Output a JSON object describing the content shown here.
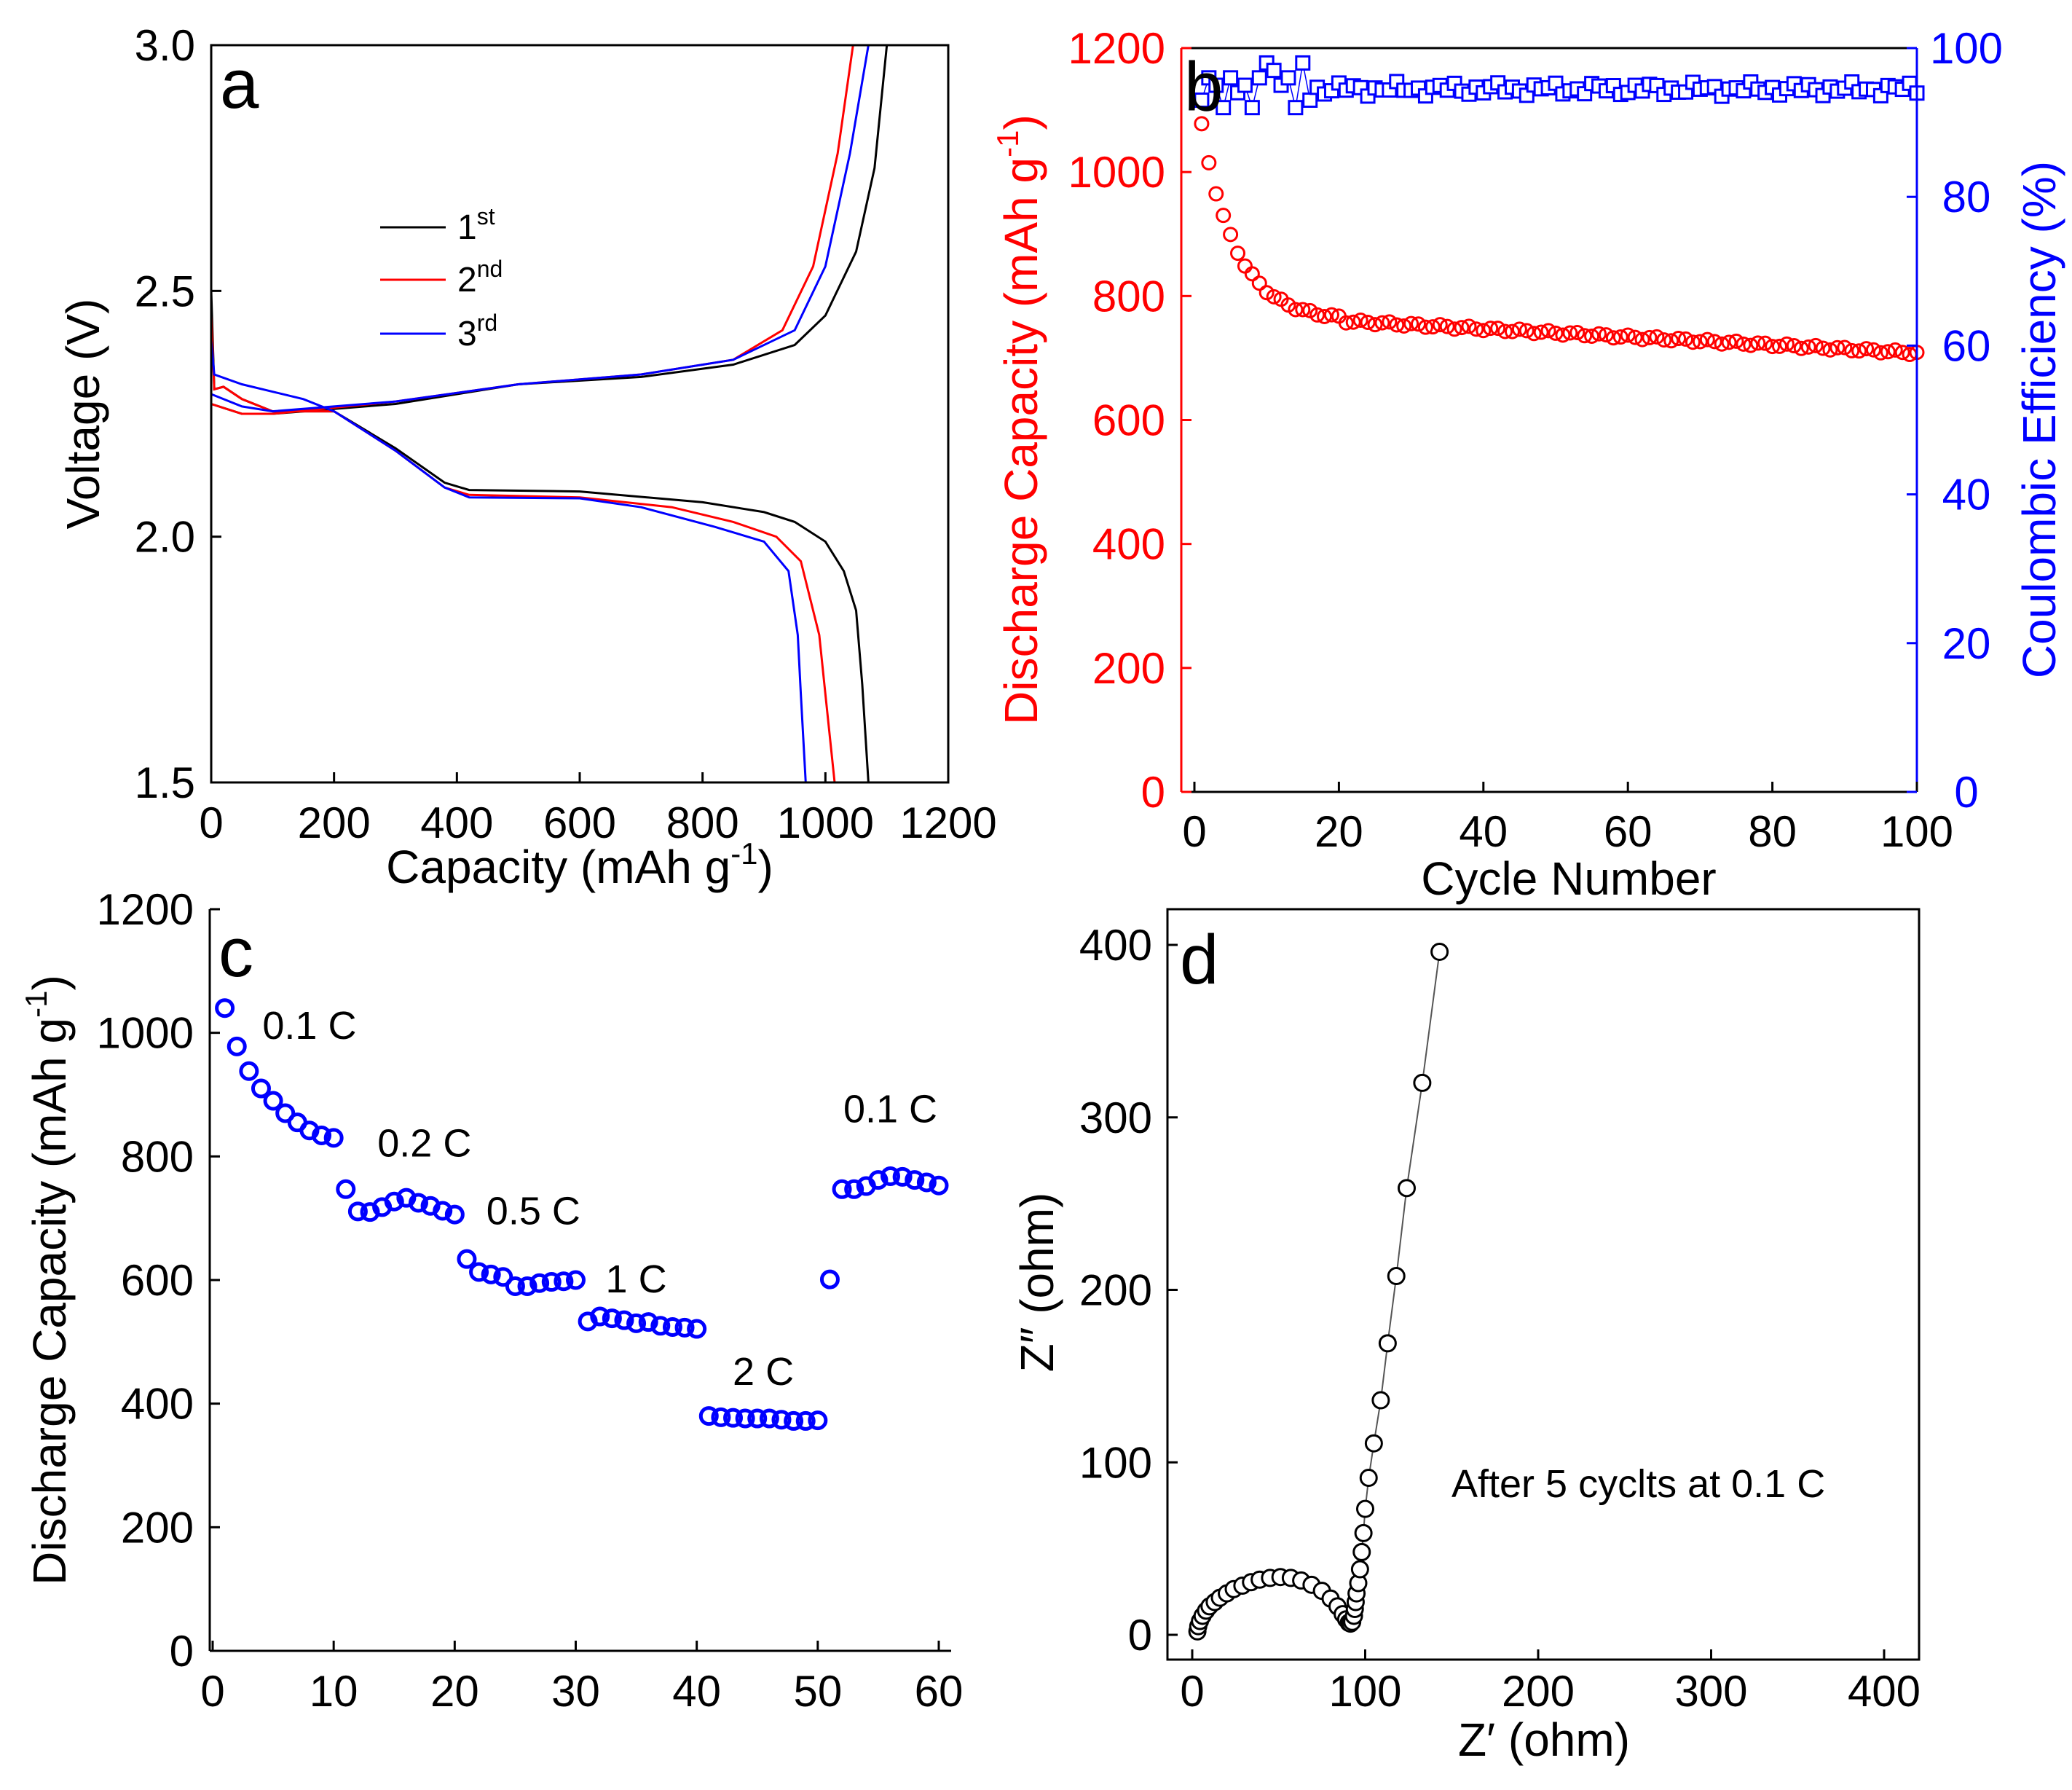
{
  "chart_data": [
    {
      "panel": "a",
      "type": "line",
      "xlabel": "Capacity (mAh g",
      "xlabel_sup": "-1",
      "xlabel_end": ")",
      "ylabel": "Voltage (V)",
      "xlim": [
        0,
        1200
      ],
      "ylim": [
        1.5,
        3.0
      ],
      "x_ticks": [
        0,
        200,
        400,
        600,
        800,
        1000,
        1200
      ],
      "y_ticks": [
        1.5,
        2.0,
        2.5,
        3.0
      ],
      "x_tick_labels": [
        "0",
        "200",
        "400",
        "600",
        "800",
        "1000",
        "1200"
      ],
      "y_tick_labels": [
        "1.5",
        "2.0",
        "2.5",
        "3.0"
      ],
      "legend": [
        {
          "text": "1",
          "sup": "st",
          "color": "#000000"
        },
        {
          "text": "2",
          "sup": "nd",
          "color": "#ff0000"
        },
        {
          "text": "3",
          "sup": "rd",
          "color": "#0000ff"
        }
      ],
      "series": [
        {
          "name": "1st",
          "color": "#000000",
          "discharge": [
            [
              0,
              2.5
            ],
            [
              5,
              2.3
            ],
            [
              20,
              2.305
            ],
            [
              50,
              2.28
            ],
            [
              100,
              2.255
            ],
            [
              200,
              2.255
            ],
            [
              300,
              2.18
            ],
            [
              380,
              2.11
            ],
            [
              420,
              2.095
            ],
            [
              600,
              2.092
            ],
            [
              800,
              2.07
            ],
            [
              900,
              2.05
            ],
            [
              950,
              2.03
            ],
            [
              1000,
              1.99
            ],
            [
              1030,
              1.93
            ],
            [
              1050,
              1.85
            ],
            [
              1060,
              1.7
            ],
            [
              1070,
              1.5
            ]
          ],
          "charge": [
            [
              0,
              2.27
            ],
            [
              50,
              2.25
            ],
            [
              100,
              2.25
            ],
            [
              300,
              2.27
            ],
            [
              500,
              2.31
            ],
            [
              700,
              2.325
            ],
            [
              850,
              2.35
            ],
            [
              950,
              2.39
            ],
            [
              1000,
              2.45
            ],
            [
              1050,
              2.58
            ],
            [
              1080,
              2.75
            ],
            [
              1100,
              3.0
            ]
          ]
        },
        {
          "name": "2nd",
          "color": "#ff0000",
          "discharge": [
            [
              0,
              2.45
            ],
            [
              5,
              2.3
            ],
            [
              20,
              2.305
            ],
            [
              50,
              2.28
            ],
            [
              100,
              2.255
            ],
            [
              200,
              2.255
            ],
            [
              300,
              2.175
            ],
            [
              380,
              2.1
            ],
            [
              420,
              2.085
            ],
            [
              600,
              2.08
            ],
            [
              750,
              2.06
            ],
            [
              850,
              2.03
            ],
            [
              920,
              2.0
            ],
            [
              960,
              1.95
            ],
            [
              990,
              1.8
            ],
            [
              1000,
              1.68
            ],
            [
              1015,
              1.5
            ]
          ],
          "charge": [
            [
              0,
              2.27
            ],
            [
              50,
              2.25
            ],
            [
              100,
              2.25
            ],
            [
              300,
              2.275
            ],
            [
              500,
              2.31
            ],
            [
              700,
              2.33
            ],
            [
              850,
              2.36
            ],
            [
              930,
              2.42
            ],
            [
              980,
              2.55
            ],
            [
              1020,
              2.78
            ],
            [
              1045,
              3.0
            ]
          ]
        },
        {
          "name": "3rd",
          "color": "#0000ff",
          "discharge": [
            [
              0,
              2.4
            ],
            [
              5,
              2.33
            ],
            [
              50,
              2.31
            ],
            [
              150,
              2.28
            ],
            [
              200,
              2.255
            ],
            [
              300,
              2.175
            ],
            [
              380,
              2.1
            ],
            [
              420,
              2.08
            ],
            [
              600,
              2.078
            ],
            [
              700,
              2.06
            ],
            [
              820,
              2.02
            ],
            [
              900,
              1.99
            ],
            [
              940,
              1.93
            ],
            [
              955,
              1.8
            ],
            [
              960,
              1.68
            ],
            [
              968,
              1.5
            ]
          ],
          "charge": [
            [
              0,
              2.29
            ],
            [
              50,
              2.265
            ],
            [
              100,
              2.255
            ],
            [
              300,
              2.275
            ],
            [
              500,
              2.31
            ],
            [
              700,
              2.33
            ],
            [
              850,
              2.36
            ],
            [
              950,
              2.42
            ],
            [
              1000,
              2.55
            ],
            [
              1040,
              2.78
            ],
            [
              1070,
              3.0
            ]
          ]
        }
      ]
    },
    {
      "panel": "b",
      "type": "scatter",
      "xlabel": "Cycle Number",
      "ylabel_left": "Discharge Capacity (mAh g",
      "ylabel_left_sup": "-1",
      "ylabel_left_end": ")",
      "ylabel_right": "Coulombic Efficiency (%)",
      "xlim": [
        0,
        100
      ],
      "ylim_left": [
        0,
        1200
      ],
      "ylim_right": [
        0,
        100
      ],
      "x_ticks": [
        0,
        20,
        40,
        60,
        80,
        100
      ],
      "y_ticks_left": [
        0,
        200,
        400,
        600,
        800,
        1000,
        1200
      ],
      "y_ticks_right": [
        0,
        20,
        40,
        60,
        80,
        100
      ],
      "x_tick_labels": [
        "0",
        "20",
        "40",
        "60",
        "80",
        "100"
      ],
      "y_tick_labels_left": [
        "0",
        "200",
        "400",
        "600",
        "800",
        "1000",
        "1200"
      ],
      "y_tick_labels_right": [
        "0",
        "20",
        "40",
        "60",
        "80",
        "100"
      ],
      "left_color": "#ff0000",
      "right_color": "#0000ff",
      "capacity_curve": {
        "start": 1075,
        "plateau_value": 760,
        "plateau_cycle": 20,
        "end_value": 708
      },
      "efficiency_curve": {
        "mean": 94.5,
        "first_cycles": [
          93,
          96,
          95,
          92,
          96,
          94,
          95,
          92,
          96,
          98,
          97,
          95,
          96,
          92,
          98,
          93
        ]
      }
    },
    {
      "panel": "c",
      "type": "scatter",
      "xlabel": "",
      "ylabel": "Discharge Capacity (mAh g",
      "ylabel_sup": "-1",
      "ylabel_end": ")",
      "xlim": [
        0,
        61
      ],
      "ylim": [
        0,
        1200
      ],
      "x_ticks": [
        0,
        10,
        20,
        30,
        40,
        50,
        60
      ],
      "y_ticks": [
        0,
        200,
        400,
        600,
        800,
        1000,
        1200
      ],
      "x_tick_labels": [
        "0",
        "10",
        "20",
        "30",
        "40",
        "50",
        "60"
      ],
      "y_tick_labels": [
        "0",
        "200",
        "400",
        "600",
        "800",
        "1000",
        "1200"
      ],
      "color": "#0000ff",
      "rate_labels": [
        {
          "text": "0.1 C",
          "x": 8,
          "y": 990
        },
        {
          "text": "0.2 C",
          "x": 17.5,
          "y": 800
        },
        {
          "text": "0.5 C",
          "x": 26.5,
          "y": 690
        },
        {
          "text": "1 C",
          "x": 35,
          "y": 580
        },
        {
          "text": "2 C",
          "x": 45.5,
          "y": 430
        },
        {
          "text": "0.1 C",
          "x": 56,
          "y": 855
        }
      ],
      "values": [
        1040,
        978,
        938,
        910,
        890,
        870,
        855,
        842,
        834,
        830,
        747,
        711,
        710,
        718,
        727,
        733,
        725,
        720,
        712,
        706,
        634,
        613,
        609,
        605,
        590,
        590,
        595,
        597,
        598,
        600,
        533,
        541,
        538,
        535,
        530,
        532,
        526,
        524,
        523,
        521,
        380,
        378,
        377,
        376,
        376,
        376,
        374,
        372,
        372,
        373,
        601,
        747,
        747,
        752,
        762,
        768,
        767,
        762,
        758,
        753
      ]
    },
    {
      "panel": "d",
      "type": "scatter",
      "xlabel": "Z′ (ohm)",
      "ylabel": "Z″ (ohm)",
      "xlim": [
        -10,
        420
      ],
      "ylim": [
        -10,
        420
      ],
      "x_ticks": [
        0,
        100,
        200,
        300,
        400
      ],
      "y_ticks": [
        0,
        100,
        200,
        300,
        400
      ],
      "x_tick_labels": [
        "0",
        "100",
        "200",
        "300",
        "400"
      ],
      "y_tick_labels": [
        "0",
        "100",
        "200",
        "300",
        "400"
      ],
      "annotation": "After 5 cyclts at 0.1 C",
      "color": "#000000",
      "points": [
        [
          3,
          2
        ],
        [
          3.5,
          5
        ],
        [
          4.5,
          8
        ],
        [
          6,
          11
        ],
        [
          8,
          14
        ],
        [
          10,
          16.5
        ],
        [
          13,
          19
        ],
        [
          16,
          21.5
        ],
        [
          20,
          24
        ],
        [
          24,
          26.5
        ],
        [
          29,
          28.5
        ],
        [
          34,
          30.5
        ],
        [
          39,
          32
        ],
        [
          45,
          33
        ],
        [
          51,
          33.5
        ],
        [
          57,
          33
        ],
        [
          63,
          31.5
        ],
        [
          69,
          29
        ],
        [
          75,
          25.5
        ],
        [
          80,
          21
        ],
        [
          84,
          16.5
        ],
        [
          87,
          12
        ],
        [
          89,
          9
        ],
        [
          90.5,
          7
        ],
        [
          91.5,
          6.5
        ],
        [
          92.5,
          7.5
        ],
        [
          93.5,
          11
        ],
        [
          94,
          15
        ],
        [
          94.5,
          19
        ],
        [
          95,
          24
        ],
        [
          96,
          30
        ],
        [
          97,
          38
        ],
        [
          98,
          48
        ],
        [
          99,
          59
        ],
        [
          100,
          73
        ],
        [
          102,
          91
        ],
        [
          105,
          111
        ],
        [
          109,
          136
        ],
        [
          113,
          169
        ],
        [
          118,
          208
        ],
        [
          124,
          259
        ],
        [
          133,
          320
        ],
        [
          143,
          396
        ]
      ]
    }
  ],
  "panel_labels": {
    "a": "a",
    "b": "b",
    "c": "c",
    "d": "d"
  }
}
